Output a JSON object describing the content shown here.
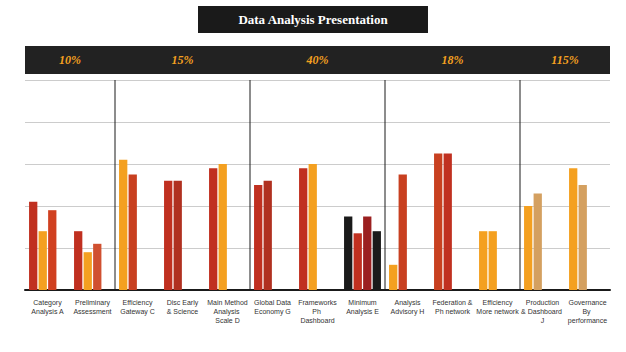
{
  "chart_data": {
    "type": "bar",
    "title": "Data Analysis Presentation",
    "annotations": [
      "10%",
      "15%",
      "40%",
      "18%",
      "115%"
    ],
    "categories": [
      "Category\nAnalysis A",
      "Preliminary\nAssessment",
      "Efficiency\nGateway C",
      "Disc Early\n& Science",
      "Main Method\nAnalysis Scale D",
      "Global Data\nEconomy G",
      "Frameworks\nPh Dashboard",
      "Minimum\nAnalysis E",
      "Analysis\nAdvisory H",
      "Federation &\nPh network",
      "Efficiency\nMore network",
      "Production\n& Dashboard J",
      "Governance\nBy performance"
    ],
    "series": [
      {
        "values": [
          0.42,
          0.28,
          0.62,
          0.52,
          0.58,
          0.5,
          0.58,
          0.35,
          0.12,
          0.65,
          0.28,
          0.4,
          0.58
        ],
        "colors": [
          "#c03020",
          "#c03020",
          "#f4a020",
          "#c03020",
          "#c03020",
          "#c03020",
          "#c03020",
          "#1a1a1a",
          "#f4a020",
          "#c84020",
          "#f4a020",
          "#f4a020",
          "#f4a020"
        ]
      },
      {
        "values": [
          0.28,
          0.18,
          0.55,
          0.52,
          0.6,
          0.52,
          0.6,
          0.27,
          0.55,
          0.65,
          0.28,
          0.46,
          0.5
        ],
        "colors": [
          "#f4a020",
          "#f4a020",
          "#c84020",
          "#b03020",
          "#f4a020",
          "#b03020",
          "#f4a020",
          "#c03020",
          "#c84020",
          "#c03020",
          "#f4a020",
          "#d4a060",
          "#d4a060"
        ]
      },
      {
        "values": [
          0.38,
          0.22,
          null,
          null,
          null,
          null,
          null,
          0.35,
          null,
          null,
          null,
          null,
          null
        ],
        "colors": [
          "#d04020",
          "#d05030",
          null,
          null,
          null,
          null,
          null,
          "#9b2020",
          null,
          null,
          null,
          null,
          null
        ]
      },
      {
        "values": [
          null,
          null,
          null,
          null,
          null,
          null,
          null,
          0.28,
          null,
          null,
          null,
          null,
          null
        ],
        "colors": [
          null,
          null,
          null,
          null,
          null,
          null,
          null,
          "#1a1a1a",
          null,
          null,
          null,
          null,
          null
        ]
      }
    ],
    "ylim": [
      0,
      1
    ],
    "yticks": [
      0,
      0.2,
      0.4,
      0.6,
      0.8,
      1
    ],
    "grid": true,
    "tick_labels": "x"
  }
}
